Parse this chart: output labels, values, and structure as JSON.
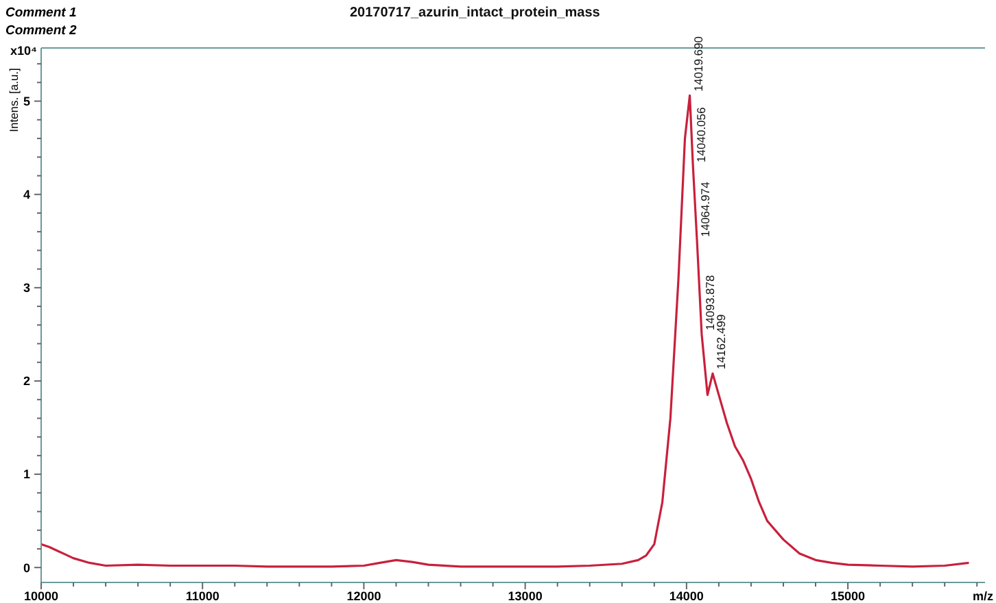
{
  "chart_data": {
    "type": "line",
    "title": "20170717_azurin_intact_protein_mass",
    "xlabel": "m/z",
    "ylabel": "Intens. [a.u.]",
    "annotations": [
      "Comment 1",
      "Comment 2",
      "x10⁴",
      {
        "text": "14019.690",
        "x": 14020,
        "y": 5.06
      },
      {
        "text": "14040.056",
        "x": 14040,
        "y": 4.3
      },
      {
        "text": "14064.974",
        "x": 14065,
        "y": 3.5
      },
      {
        "text": "14093.878",
        "x": 14094,
        "y": 2.5
      },
      {
        "text": "14162.499",
        "x": 14162,
        "y": 2.08
      }
    ],
    "x": [
      10000,
      10050,
      10100,
      10150,
      10200,
      10300,
      10400,
      10600,
      10800,
      11000,
      11200,
      11400,
      11600,
      11800,
      12000,
      12100,
      12200,
      12300,
      12400,
      12600,
      12800,
      13000,
      13200,
      13400,
      13600,
      13700,
      13750,
      13800,
      13850,
      13900,
      13950,
      13990,
      14020,
      14040,
      14065,
      14094,
      14130,
      14162,
      14200,
      14250,
      14300,
      14350,
      14400,
      14450,
      14500,
      14600,
      14700,
      14800,
      14900,
      15000,
      15200,
      15400,
      15600,
      15750
    ],
    "series": [
      {
        "color": "#c8203c",
        "values": [
          0.25,
          0.22,
          0.18,
          0.14,
          0.1,
          0.05,
          0.02,
          0.03,
          0.02,
          0.02,
          0.02,
          0.01,
          0.01,
          0.01,
          0.02,
          0.05,
          0.08,
          0.06,
          0.03,
          0.01,
          0.01,
          0.01,
          0.01,
          0.02,
          0.04,
          0.08,
          0.13,
          0.25,
          0.7,
          1.6,
          3.1,
          4.6,
          5.06,
          4.3,
          3.5,
          2.5,
          1.85,
          2.08,
          1.85,
          1.55,
          1.3,
          1.15,
          0.95,
          0.7,
          0.5,
          0.3,
          0.15,
          0.08,
          0.05,
          0.03,
          0.02,
          0.01,
          0.02,
          0.05
        ]
      }
    ],
    "xlim": [
      10000,
      15850
    ],
    "ylim": [
      -0.16,
      5.57
    ],
    "xticks": [
      10000,
      {
        "value": 10200,
        "label": null
      },
      {
        "value": 10400,
        "label": null
      },
      {
        "value": 10600,
        "label": null
      },
      {
        "value": 10800,
        "label": null
      },
      11000,
      {
        "value": 11200,
        "label": null
      },
      {
        "value": 11400,
        "label": null
      },
      {
        "value": 11600,
        "label": null
      },
      {
        "value": 11800,
        "label": null
      },
      12000,
      {
        "value": 12200,
        "label": null
      },
      {
        "value": 12400,
        "label": null
      },
      {
        "value": 12600,
        "label": null
      },
      {
        "value": 12800,
        "label": null
      },
      13000,
      {
        "value": 13200,
        "label": null
      },
      {
        "value": 13400,
        "label": null
      },
      {
        "value": 13600,
        "label": null
      },
      {
        "value": 13800,
        "label": null
      },
      14000,
      {
        "value": 14200,
        "label": null
      },
      {
        "value": 14400,
        "label": null
      },
      {
        "value": 14600,
        "label": null
      },
      {
        "value": 14800,
        "label": null
      },
      15000,
      {
        "value": 15200,
        "label": null
      },
      {
        "value": 15400,
        "label": null
      },
      {
        "value": 15600,
        "label": null
      },
      {
        "value": 15800,
        "label": null
      }
    ],
    "yticks": [
      0,
      {
        "value": 0.2,
        "label": null
      },
      {
        "value": 0.4,
        "label": null
      },
      {
        "value": 0.6,
        "label": null
      },
      {
        "value": 0.8,
        "label": null
      },
      1,
      {
        "value": 1.2,
        "label": null
      },
      {
        "value": 1.4,
        "label": null
      },
      {
        "value": 1.6,
        "label": null
      },
      {
        "value": 1.8,
        "label": null
      },
      2,
      {
        "value": 2.2,
        "label": null
      },
      {
        "value": 2.4,
        "label": null
      },
      {
        "value": 2.6,
        "label": null
      },
      {
        "value": 2.8,
        "label": null
      },
      3,
      {
        "value": 3.2,
        "label": null
      },
      {
        "value": 3.4,
        "label": null
      },
      {
        "value": 3.6,
        "label": null
      },
      {
        "value": 3.8,
        "label": null
      },
      4,
      {
        "value": 4.2,
        "label": null
      },
      {
        "value": 4.4,
        "label": null
      },
      {
        "value": 4.6,
        "label": null
      },
      {
        "value": 4.8,
        "label": null
      },
      5,
      {
        "value": 5.2,
        "label": null
      },
      {
        "value": 5.4,
        "label": null
      }
    ],
    "grid": false,
    "marker": "none",
    "line_style": "solid"
  }
}
